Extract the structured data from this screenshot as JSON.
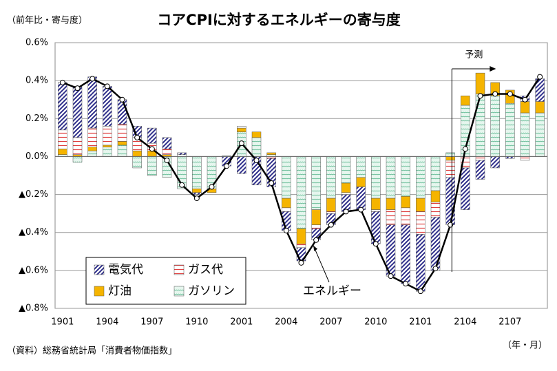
{
  "chart_data": {
    "type": "bar",
    "title": "コアCPIに対するエネルギーの寄与度",
    "y_axis_label": "（前年比・寄与度）",
    "x_axis_label": "（年・月）",
    "source": "（資料）総務省統計局「消費者物価指数」",
    "forecast_label": "予測",
    "categories": [
      "1901",
      null,
      null,
      "1904",
      null,
      null,
      "1907",
      null,
      null,
      "1910",
      null,
      null,
      "2001",
      null,
      null,
      "2004",
      null,
      null,
      "2007",
      null,
      null,
      "2010",
      null,
      null,
      "2101",
      null,
      null,
      "2104",
      null,
      null,
      "2107",
      null,
      null
    ],
    "series": [
      {
        "name": "電気代",
        "color": "#2e2e8a",
        "values": [
          0.25,
          0.27,
          0.27,
          0.21,
          0.13,
          0.06,
          0.08,
          0.06,
          0.01,
          -0.01,
          0.0,
          -0.05,
          -0.09,
          -0.15,
          -0.15,
          -0.1,
          -0.07,
          -0.06,
          -0.06,
          -0.09,
          -0.12,
          -0.17,
          -0.27,
          -0.31,
          -0.3,
          -0.28,
          -0.25,
          -0.22,
          -0.1,
          -0.06,
          -0.01,
          0.03,
          0.12
        ]
      },
      {
        "name": "ガス代",
        "color": "#e04040",
        "values": [
          0.1,
          0.09,
          0.1,
          0.1,
          0.09,
          0.07,
          0.04,
          0.03,
          0.01,
          0.0,
          0.0,
          0.0,
          0.01,
          0.0,
          -0.01,
          -0.02,
          -0.02,
          -0.02,
          -0.01,
          -0.01,
          0.0,
          -0.01,
          -0.08,
          -0.09,
          -0.12,
          -0.08,
          -0.09,
          -0.06,
          -0.02,
          0.0,
          0.0,
          -0.02,
          0.0
        ]
      },
      {
        "name": "灯油",
        "color": "#f5b400",
        "values": [
          0.03,
          0.01,
          0.02,
          0.01,
          0.02,
          0.03,
          0.03,
          0.01,
          0.0,
          -0.02,
          -0.02,
          0.0,
          0.02,
          0.03,
          0.01,
          -0.05,
          -0.08,
          -0.08,
          -0.07,
          -0.05,
          -0.05,
          -0.06,
          -0.06,
          -0.06,
          -0.07,
          -0.06,
          -0.02,
          0.05,
          0.11,
          0.07,
          0.07,
          0.06,
          0.06
        ]
      },
      {
        "name": "ガソリン",
        "color": "#3aa878",
        "values": [
          0.01,
          -0.03,
          0.03,
          0.05,
          0.06,
          -0.06,
          -0.1,
          -0.11,
          -0.17,
          -0.17,
          -0.17,
          0.005,
          0.13,
          0.1,
          0.01,
          -0.22,
          -0.38,
          -0.28,
          -0.22,
          -0.14,
          -0.11,
          -0.22,
          -0.22,
          -0.21,
          -0.22,
          -0.18,
          0.02,
          0.27,
          0.33,
          0.32,
          0.28,
          0.23,
          0.23
        ]
      }
    ],
    "line": {
      "name": "エネルギー",
      "color": "#000000",
      "values": [
        0.39,
        0.36,
        0.41,
        0.37,
        0.3,
        0.1,
        0.04,
        -0.02,
        -0.15,
        -0.22,
        -0.16,
        -0.05,
        0.07,
        -0.02,
        -0.14,
        -0.39,
        -0.56,
        -0.44,
        -0.36,
        -0.29,
        -0.28,
        -0.46,
        -0.63,
        -0.67,
        -0.71,
        -0.59,
        -0.36,
        0.04,
        0.32,
        0.33,
        0.33,
        0.3,
        0.42
      ]
    },
    "ylim": [
      -0.8,
      0.6
    ],
    "yticks": [
      {
        "value": -0.8,
        "label": "▲0.8%"
      },
      {
        "value": -0.6,
        "label": "▲0.6%"
      },
      {
        "value": -0.4,
        "label": "▲0.4%"
      },
      {
        "value": -0.2,
        "label": "▲0.2%"
      },
      {
        "value": 0.0,
        "label": "0.0%"
      },
      {
        "value": 0.2,
        "label": "0.2%"
      },
      {
        "value": 0.4,
        "label": "0.4%"
      },
      {
        "value": 0.6,
        "label": "0.6%"
      }
    ],
    "grid": true
  }
}
